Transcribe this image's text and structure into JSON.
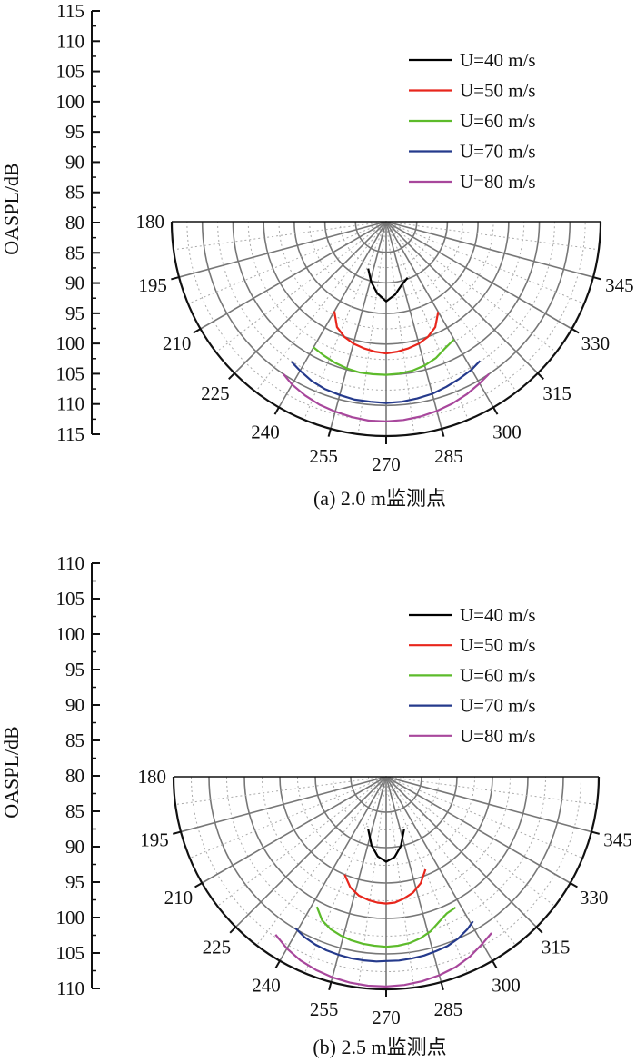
{
  "chart_data": [
    {
      "type": "polar",
      "caption": "(a) 2.0 m监测点",
      "ylabel": "OASPL/dB",
      "radial_ticks": [
        "115",
        "110",
        "105",
        "100",
        "95",
        "90",
        "85",
        "80",
        "85",
        "90",
        "95",
        "100",
        "105",
        "110",
        "115"
      ],
      "rlim": [
        80,
        115
      ],
      "angle_ticks": [
        "180",
        "195",
        "210",
        "225",
        "240",
        "255",
        "270",
        "285",
        "300",
        "315",
        "330",
        "345"
      ],
      "legend": {
        "placement": "top-right"
      },
      "grid": true,
      "series": [
        {
          "name": "U=40 m/s",
          "color": "#000000",
          "angles": [
            249,
            256,
            263,
            270,
            277,
            284,
            291
          ],
          "values": [
            88.2,
            90.1,
            91.8,
            93.0,
            92.0,
            90.6,
            89.8
          ]
        },
        {
          "name": "U=50 m/s",
          "color": "#e8261c",
          "angles": [
            240,
            245,
            250,
            255,
            260,
            265,
            270,
            275,
            280,
            285,
            290,
            295,
            300
          ],
          "values": [
            96.9,
            99.0,
            100.0,
            100.6,
            101.0,
            101.3,
            101.5,
            101.3,
            101.0,
            100.6,
            100.0,
            99.0,
            97.0
          ]
        },
        {
          "name": "U=60 m/s",
          "color": "#5dbb2b",
          "angles": [
            240,
            245,
            250,
            255,
            260,
            265,
            270,
            275,
            280,
            285,
            290,
            295,
            300
          ],
          "values": [
            103.7,
            104.1,
            104.5,
            104.8,
            105.0,
            105.0,
            105.0,
            104.9,
            104.7,
            104.3,
            103.7,
            102.8,
            102.2
          ]
        },
        {
          "name": "U=70 m/s",
          "color": "#253a8c",
          "angles": [
            236,
            240,
            245,
            250,
            255,
            260,
            265,
            270,
            275,
            280,
            285,
            290,
            295,
            300,
            304
          ],
          "values": [
            107.6,
            108.1,
            108.7,
            109.1,
            109.3,
            109.5,
            109.5,
            109.6,
            109.5,
            109.3,
            109.1,
            108.7,
            108.3,
            107.9,
            107.4
          ]
        },
        {
          "name": "U=80 m/s",
          "color": "#a8479c",
          "angles": [
            236,
            240,
            245,
            250,
            255,
            260,
            265,
            270,
            275,
            280,
            285,
            290,
            295,
            300,
            304
          ],
          "values": [
            110.0,
            110.7,
            111.3,
            111.8,
            112.1,
            112.4,
            112.6,
            112.6,
            112.5,
            112.3,
            112.0,
            111.6,
            111.1,
            110.5,
            110.0
          ]
        }
      ]
    },
    {
      "type": "polar",
      "caption": "(b) 2.5 m监测点",
      "ylabel": "OASPL/dB",
      "radial_ticks": [
        "110",
        "105",
        "100",
        "95",
        "90",
        "85",
        "80",
        "85",
        "90",
        "95",
        "100",
        "105",
        "110"
      ],
      "rlim": [
        80,
        110
      ],
      "angle_ticks": [
        "180",
        "195",
        "210",
        "225",
        "240",
        "255",
        "270",
        "285",
        "300",
        "315",
        "330",
        "345"
      ],
      "legend": {
        "placement": "top-right"
      },
      "grid": true,
      "series": [
        {
          "name": "U=40 m/s",
          "color": "#000000",
          "angles": [
            251,
            258,
            264,
            270,
            276,
            282,
            289
          ],
          "values": [
            87.8,
            89.9,
            91.3,
            92.0,
            91.4,
            90.0,
            87.8
          ]
        },
        {
          "name": "U=50 m/s",
          "color": "#e8261c",
          "angles": [
            247,
            252,
            257,
            262,
            266,
            270,
            274,
            278,
            283,
            288,
            293
          ],
          "values": [
            95.0,
            96.4,
            97.2,
            97.6,
            97.8,
            97.9,
            97.8,
            97.4,
            96.8,
            95.8,
            94.2
          ]
        },
        {
          "name": "U=60 m/s",
          "color": "#5dbb2b",
          "angles": [
            242,
            246,
            250,
            254,
            258,
            262,
            266,
            270,
            274,
            278,
            282,
            286,
            290,
            294,
            298
          ],
          "values": [
            100.8,
            102.2,
            102.9,
            103.3,
            103.6,
            103.8,
            103.9,
            104.0,
            103.9,
            103.7,
            103.3,
            102.7,
            101.8,
            101.1,
            100.9
          ]
        },
        {
          "name": "U=70 m/s",
          "color": "#253a8c",
          "angles": [
            239,
            243,
            247,
            251,
            255,
            259,
            263,
            267,
            270,
            274,
            278,
            282,
            286,
            290,
            294,
            298,
            301
          ],
          "values": [
            104.9,
            105.4,
            105.7,
            105.9,
            106.0,
            106.1,
            106.1,
            106.1,
            106.0,
            106.0,
            105.9,
            105.8,
            105.6,
            105.4,
            105.0,
            104.4,
            103.8
          ]
        },
        {
          "name": "U=80 m/s",
          "color": "#a8479c",
          "angles": [
            235,
            240,
            245,
            250,
            255,
            260,
            265,
            270,
            275,
            280,
            285,
            290,
            295,
            300,
            304
          ],
          "values": [
            107.2,
            108.0,
            108.6,
            109.0,
            109.3,
            109.5,
            109.6,
            109.6,
            109.5,
            109.3,
            109.0,
            108.6,
            108.0,
            107.2,
            106.6
          ]
        }
      ]
    }
  ]
}
